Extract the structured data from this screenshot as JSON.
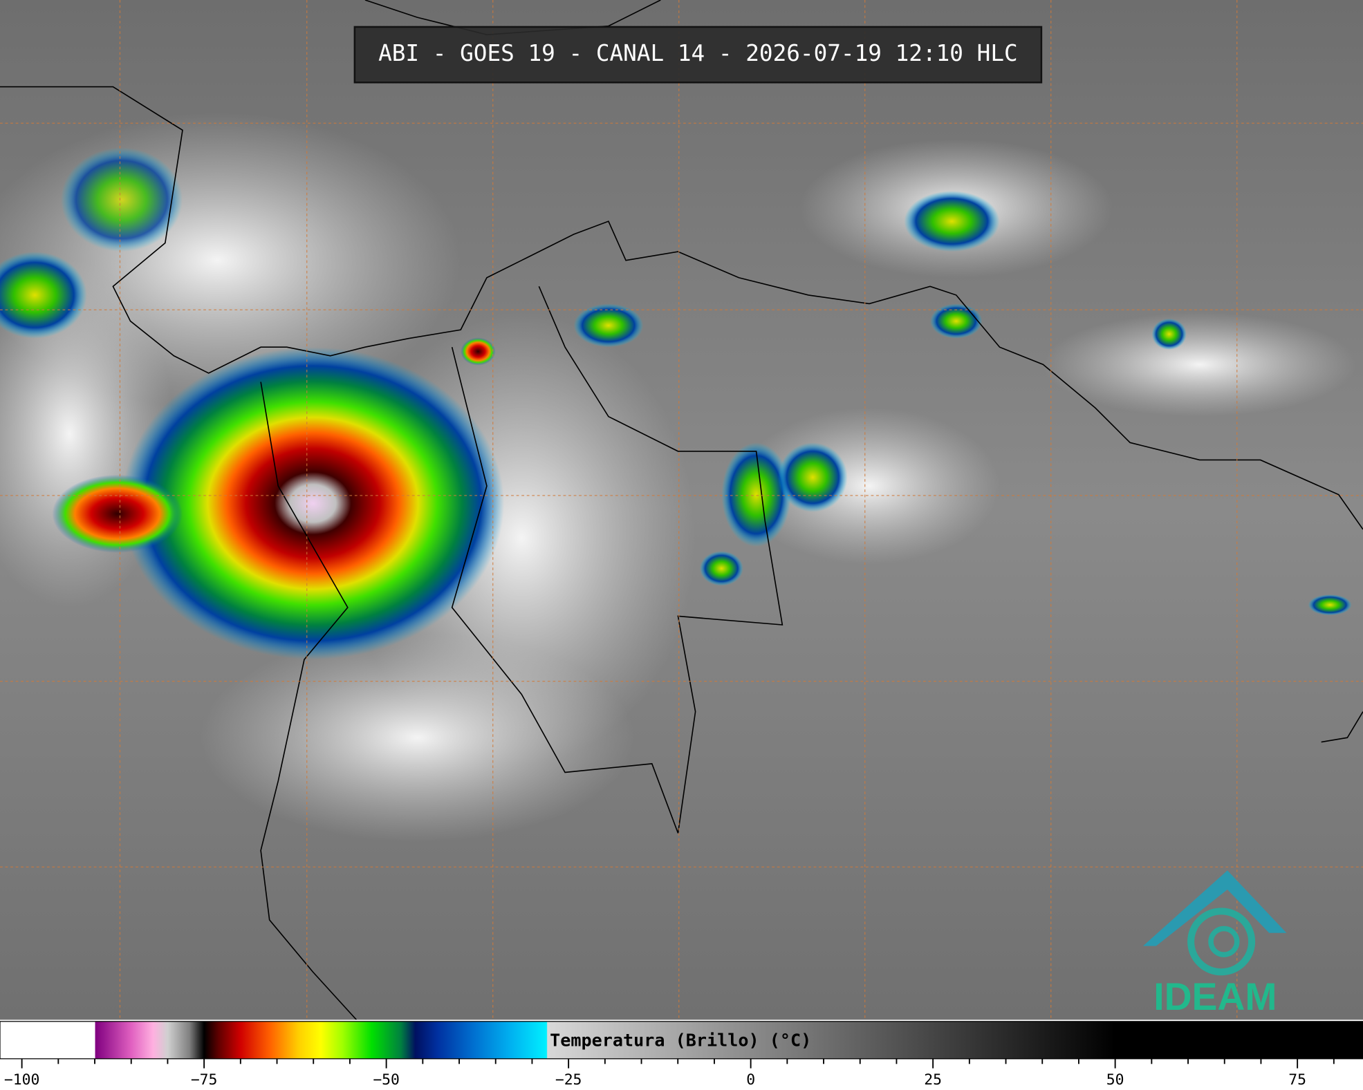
{
  "header": {
    "title": "ABI - GOES 19 - CANAL 14 - 2026-07-19 12:10 HLC"
  },
  "colorbar": {
    "label": "Temperatura (Brillo) (°C)",
    "lim": [
      -103,
      84
    ],
    "ticks": [
      {
        "value": -100,
        "label": "−100"
      },
      {
        "value": -75,
        "label": "−75"
      },
      {
        "value": -50,
        "label": "−50"
      },
      {
        "value": -25,
        "label": "−25"
      },
      0,
      25,
      50,
      75
    ],
    "minor_ticks": [
      -95,
      -90,
      -85,
      -80,
      -70,
      -65,
      -60,
      -55,
      -45,
      -40,
      -35,
      -30,
      -20,
      -15,
      -10,
      -5,
      5,
      10,
      15,
      20,
      30,
      35,
      40,
      45,
      55,
      60,
      65,
      70,
      80
    ],
    "colormap": [
      [
        -103,
        "#ffffff"
      ],
      [
        -90,
        "#ffffff"
      ],
      [
        -89.9,
        "#800080"
      ],
      [
        -85,
        "#e060c0"
      ],
      [
        -82,
        "#ffb0e0"
      ],
      [
        -80,
        "#d0d0d0"
      ],
      [
        -77,
        "#808080"
      ],
      [
        -75,
        "#000000"
      ],
      [
        -73,
        "#600000"
      ],
      [
        -70,
        "#d00000"
      ],
      [
        -66,
        "#ff6000"
      ],
      [
        -62,
        "#ffd000"
      ],
      [
        -59,
        "#ffff00"
      ],
      [
        -56,
        "#a0ff00"
      ],
      [
        -52,
        "#00e000"
      ],
      [
        -48,
        "#008040"
      ],
      [
        -46,
        "#001060"
      ],
      [
        -43,
        "#0030a0"
      ],
      [
        -38,
        "#0070d0"
      ],
      [
        -33,
        "#00b0f0"
      ],
      [
        -28,
        "#00f0ff"
      ],
      [
        -27.9,
        "#d8d8d8"
      ],
      [
        50,
        "#000000"
      ],
      [
        84,
        "#000000"
      ]
    ]
  },
  "logo": {
    "text": "IDEAM"
  }
}
